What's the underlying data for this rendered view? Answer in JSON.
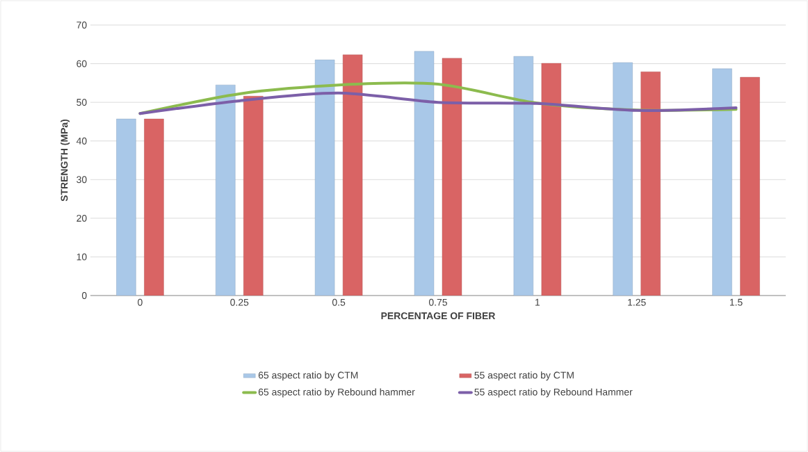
{
  "chart_data": {
    "type": "bar",
    "xlabel": "PERCENTAGE OF FIBER",
    "ylabel": "STRENGTH (MPa)",
    "categories": [
      "0",
      "0.25",
      "0.5",
      "0.75",
      "1",
      "1.25",
      "1.5"
    ],
    "series": [
      {
        "name": "65 aspect ratio by CTM",
        "color": "#a9c8e8",
        "values": [
          45.7,
          54.5,
          61,
          63.2,
          61.9,
          60.3,
          58.7
        ]
      },
      {
        "name": "55 aspect ratio by CTM",
        "color": "#d96464",
        "values": [
          45.7,
          51.6,
          62.3,
          61.4,
          60.1,
          57.9,
          56.5
        ]
      },
      {
        "name": "65 aspect ratio by Rebound hammer",
        "type": "line",
        "color": "#8cbb4e",
        "values": [
          47.1,
          52.2,
          54.5,
          54.7,
          49.8,
          48,
          48.2
        ]
      },
      {
        "name": "55 aspect ratio by Rebound Hammer",
        "type": "line",
        "color": "#7c5fa8",
        "values": [
          47.1,
          50.4,
          52.4,
          50,
          49.7,
          47.9,
          48.6
        ]
      }
    ],
    "ylim": [
      0,
      70
    ],
    "yticks": [
      0,
      10,
      20,
      30,
      40,
      50,
      60,
      70
    ],
    "grid": "y",
    "legend": "bottom"
  }
}
